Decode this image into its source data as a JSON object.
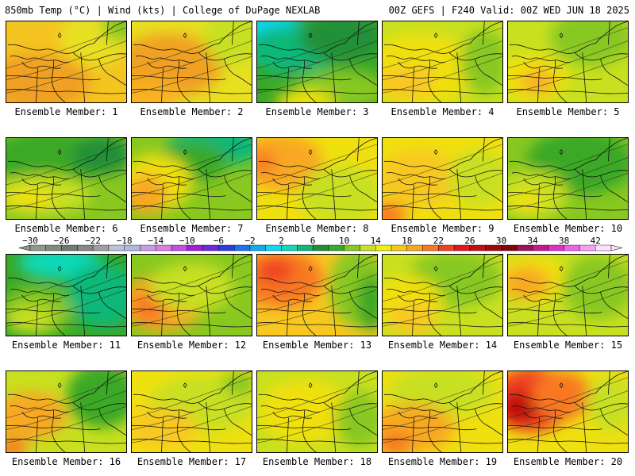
{
  "header": {
    "left": "850mb Temp (°C) | Wind (kts) | College of DuPage NEXLAB",
    "right": "00Z GEFS | F240 Valid: 00Z WED JUN 18 2025"
  },
  "colorbar": {
    "tick_labels": [
      "−30",
      "−26",
      "−22",
      "−18",
      "−14",
      "−10",
      "−6",
      "−2",
      "2",
      "6",
      "10",
      "14",
      "18",
      "22",
      "26",
      "30",
      "34",
      "38",
      "42"
    ],
    "bins": [
      {
        "from": -30,
        "to": -28,
        "color": "#8c9a8c"
      },
      {
        "from": -28,
        "to": -26,
        "color": "#7e8c7e"
      },
      {
        "from": -26,
        "to": -24,
        "color": "#6e7b6e"
      },
      {
        "from": -24,
        "to": -22,
        "color": "#868686"
      },
      {
        "from": -22,
        "to": -20,
        "color": "#a0a0a0"
      },
      {
        "from": -20,
        "to": -18,
        "color": "#b8c4d6"
      },
      {
        "from": -18,
        "to": -16,
        "color": "#aab8e2"
      },
      {
        "from": -16,
        "to": -14,
        "color": "#c89be0"
      },
      {
        "from": -14,
        "to": -12,
        "color": "#d87fe6"
      },
      {
        "from": -12,
        "to": -10,
        "color": "#c04ee0"
      },
      {
        "from": -10,
        "to": -8,
        "color": "#a020d8"
      },
      {
        "from": -8,
        "to": -6,
        "color": "#6a2ad8"
      },
      {
        "from": -6,
        "to": -4,
        "color": "#2a3ce8"
      },
      {
        "from": -4,
        "to": -2,
        "color": "#1a74f0"
      },
      {
        "from": -2,
        "to": 0,
        "color": "#10a8f0"
      },
      {
        "from": 0,
        "to": 2,
        "color": "#10d8f0"
      },
      {
        "from": 2,
        "to": 4,
        "color": "#10d8b8"
      },
      {
        "from": 4,
        "to": 6,
        "color": "#10b878"
      },
      {
        "from": 6,
        "to": 8,
        "color": "#209038"
      },
      {
        "from": 8,
        "to": 10,
        "color": "#3aa828"
      },
      {
        "from": 10,
        "to": 12,
        "color": "#88c820"
      },
      {
        "from": 12,
        "to": 14,
        "color": "#c8e020"
      },
      {
        "from": 14,
        "to": 16,
        "color": "#f0f010"
      },
      {
        "from": 16,
        "to": 18,
        "color": "#f8c810"
      },
      {
        "from": 18,
        "to": 20,
        "color": "#f8a820"
      },
      {
        "from": 20,
        "to": 22,
        "color": "#f87820"
      },
      {
        "from": 22,
        "to": 24,
        "color": "#f04020"
      },
      {
        "from": 24,
        "to": 26,
        "color": "#e01818"
      },
      {
        "from": 26,
        "to": 28,
        "color": "#c01010"
      },
      {
        "from": 28,
        "to": 30,
        "color": "#a00808"
      },
      {
        "from": 30,
        "to": 32,
        "color": "#800408"
      },
      {
        "from": 32,
        "to": 34,
        "color": "#a01058"
      },
      {
        "from": 34,
        "to": 36,
        "color": "#c81890"
      },
      {
        "from": 36,
        "to": 38,
        "color": "#e030c8"
      },
      {
        "from": 38,
        "to": 40,
        "color": "#f060e8"
      },
      {
        "from": 40,
        "to": 42,
        "color": "#f4a0f0"
      },
      {
        "from": 42,
        "to": 44,
        "color": "#fce0fc"
      }
    ]
  },
  "members": [
    {
      "label": "Ensemble Member: 1",
      "base": "#f4c420",
      "blobs": [
        [
          "#f0a020",
          0.25,
          0.75,
          0.45,
          0.35
        ],
        [
          "#e8e020",
          0.75,
          0.2,
          0.3,
          0.35
        ],
        [
          "#88c820",
          0.95,
          0.05,
          0.15,
          0.2
        ]
      ]
    },
    {
      "label": "Ensemble Member: 2",
      "base": "#e8e020",
      "blobs": [
        [
          "#f0a020",
          0.3,
          0.55,
          0.45,
          0.4
        ],
        [
          "#c8e020",
          0.85,
          0.2,
          0.25,
          0.35
        ],
        [
          "#f8b020",
          0.1,
          0.9,
          0.3,
          0.2
        ]
      ]
    },
    {
      "label": "Ensemble Member: 3",
      "base": "#3aa828",
      "blobs": [
        [
          "#10d8f0",
          0.12,
          0.1,
          0.25,
          0.25
        ],
        [
          "#10b878",
          0.3,
          0.35,
          0.4,
          0.3
        ],
        [
          "#209038",
          0.7,
          0.2,
          0.35,
          0.3
        ],
        [
          "#88c820",
          0.7,
          0.85,
          0.4,
          0.25
        ],
        [
          "#f0e010",
          0.4,
          1.0,
          0.25,
          0.15
        ]
      ]
    },
    {
      "label": "Ensemble Member: 4",
      "base": "#c8e020",
      "blobs": [
        [
          "#f0e010",
          0.3,
          0.6,
          0.5,
          0.45
        ],
        [
          "#f8c820",
          0.2,
          0.75,
          0.25,
          0.2
        ],
        [
          "#88c820",
          0.85,
          0.5,
          0.2,
          0.4
        ]
      ]
    },
    {
      "label": "Ensemble Member: 5",
      "base": "#c8e020",
      "blobs": [
        [
          "#88c820",
          0.7,
          0.2,
          0.35,
          0.35
        ],
        [
          "#f0e010",
          0.2,
          0.7,
          0.3,
          0.3
        ],
        [
          "#f8b020",
          0.25,
          0.75,
          0.15,
          0.15
        ]
      ]
    },
    {
      "label": "Ensemble Member: 6",
      "base": "#88c820",
      "blobs": [
        [
          "#3aa828",
          0.35,
          0.25,
          0.5,
          0.35
        ],
        [
          "#209038",
          0.8,
          0.2,
          0.25,
          0.25
        ],
        [
          "#c8e020",
          0.3,
          0.7,
          0.4,
          0.25
        ],
        [
          "#f0e010",
          0.2,
          0.75,
          0.2,
          0.12
        ]
      ]
    },
    {
      "label": "Ensemble Member: 7",
      "base": "#88c820",
      "blobs": [
        [
          "#10b878",
          0.7,
          0.1,
          0.4,
          0.25
        ],
        [
          "#3aa828",
          0.5,
          0.3,
          0.3,
          0.25
        ],
        [
          "#f0e010",
          0.2,
          0.55,
          0.3,
          0.35
        ],
        [
          "#f8a820",
          0.12,
          0.7,
          0.18,
          0.25
        ]
      ]
    },
    {
      "label": "Ensemble Member: 8",
      "base": "#f0e010",
      "blobs": [
        [
          "#f8a820",
          0.2,
          0.3,
          0.35,
          0.35
        ],
        [
          "#f87820",
          0.05,
          0.3,
          0.1,
          0.15
        ],
        [
          "#c8e020",
          0.7,
          0.7,
          0.35,
          0.35
        ]
      ]
    },
    {
      "label": "Ensemble Member: 9",
      "base": "#f0e010",
      "blobs": [
        [
          "#f8c820",
          0.3,
          0.5,
          0.35,
          0.35
        ],
        [
          "#f87820",
          0.05,
          0.95,
          0.15,
          0.15
        ],
        [
          "#c8e020",
          0.8,
          0.5,
          0.25,
          0.35
        ]
      ]
    },
    {
      "label": "Ensemble Member: 10",
      "base": "#88c820",
      "blobs": [
        [
          "#3aa828",
          0.6,
          0.3,
          0.45,
          0.4
        ],
        [
          "#c8e020",
          0.2,
          0.7,
          0.3,
          0.3
        ],
        [
          "#f0e010",
          0.15,
          0.8,
          0.15,
          0.12
        ]
      ]
    },
    {
      "label": "Ensemble Member: 11",
      "base": "#3aa828",
      "blobs": [
        [
          "#10d8b8",
          0.45,
          0.1,
          0.35,
          0.2
        ],
        [
          "#10b878",
          0.8,
          0.5,
          0.3,
          0.4
        ],
        [
          "#88c820",
          0.25,
          0.7,
          0.3,
          0.3
        ],
        [
          "#c8e020",
          0.2,
          0.8,
          0.2,
          0.15
        ]
      ]
    },
    {
      "label": "Ensemble Member: 12",
      "base": "#88c820",
      "blobs": [
        [
          "#f8a820",
          0.25,
          0.6,
          0.35,
          0.35
        ],
        [
          "#f87820",
          0.15,
          0.65,
          0.15,
          0.2
        ],
        [
          "#c8e020",
          0.5,
          0.4,
          0.35,
          0.3
        ]
      ]
    },
    {
      "label": "Ensemble Member: 13",
      "base": "#f8c820",
      "blobs": [
        [
          "#f87820",
          0.2,
          0.3,
          0.35,
          0.35
        ],
        [
          "#f04020",
          0.15,
          0.2,
          0.15,
          0.15
        ],
        [
          "#88c820",
          0.85,
          0.4,
          0.25,
          0.5
        ],
        [
          "#3aa828",
          0.95,
          0.6,
          0.12,
          0.35
        ]
      ]
    },
    {
      "label": "Ensemble Member: 14",
      "base": "#c8e020",
      "blobs": [
        [
          "#88c820",
          0.6,
          0.3,
          0.4,
          0.35
        ],
        [
          "#f0e010",
          0.2,
          0.6,
          0.3,
          0.35
        ],
        [
          "#f8c820",
          0.25,
          0.8,
          0.2,
          0.2
        ]
      ]
    },
    {
      "label": "Ensemble Member: 15",
      "base": "#c8e020",
      "blobs": [
        [
          "#f0e010",
          0.2,
          0.3,
          0.3,
          0.3
        ],
        [
          "#f8a820",
          0.15,
          0.35,
          0.2,
          0.2
        ],
        [
          "#88c820",
          0.75,
          0.4,
          0.3,
          0.4
        ]
      ]
    },
    {
      "label": "Ensemble Member: 16",
      "base": "#c8e020",
      "blobs": [
        [
          "#f8a820",
          0.2,
          0.55,
          0.3,
          0.3
        ],
        [
          "#f87820",
          0.05,
          0.95,
          0.12,
          0.12
        ],
        [
          "#3aa828",
          0.8,
          0.3,
          0.3,
          0.4
        ]
      ]
    },
    {
      "label": "Ensemble Member: 17",
      "base": "#f0e010",
      "blobs": [
        [
          "#c8e020",
          0.6,
          0.4,
          0.45,
          0.35
        ],
        [
          "#f8c820",
          0.25,
          0.7,
          0.3,
          0.25
        ],
        [
          "#88c820",
          0.9,
          0.15,
          0.15,
          0.15
        ]
      ]
    },
    {
      "label": "Ensemble Member: 18",
      "base": "#c8e020",
      "blobs": [
        [
          "#f0e010",
          0.4,
          0.5,
          0.4,
          0.4
        ],
        [
          "#88c820",
          0.85,
          0.6,
          0.2,
          0.35
        ]
      ]
    },
    {
      "label": "Ensemble Member: 19",
      "base": "#f0e010",
      "blobs": [
        [
          "#c8e020",
          0.5,
          0.25,
          0.45,
          0.3
        ],
        [
          "#f8a820",
          0.25,
          0.7,
          0.35,
          0.3
        ],
        [
          "#f87820",
          0.1,
          0.9,
          0.15,
          0.15
        ]
      ]
    },
    {
      "label": "Ensemble Member: 20",
      "base": "#f0e010",
      "blobs": [
        [
          "#f04020",
          0.2,
          0.35,
          0.35,
          0.4
        ],
        [
          "#c01010",
          0.1,
          0.45,
          0.18,
          0.2
        ],
        [
          "#f87820",
          0.45,
          0.3,
          0.25,
          0.3
        ],
        [
          "#c8e020",
          0.85,
          0.4,
          0.2,
          0.35
        ]
      ]
    }
  ]
}
